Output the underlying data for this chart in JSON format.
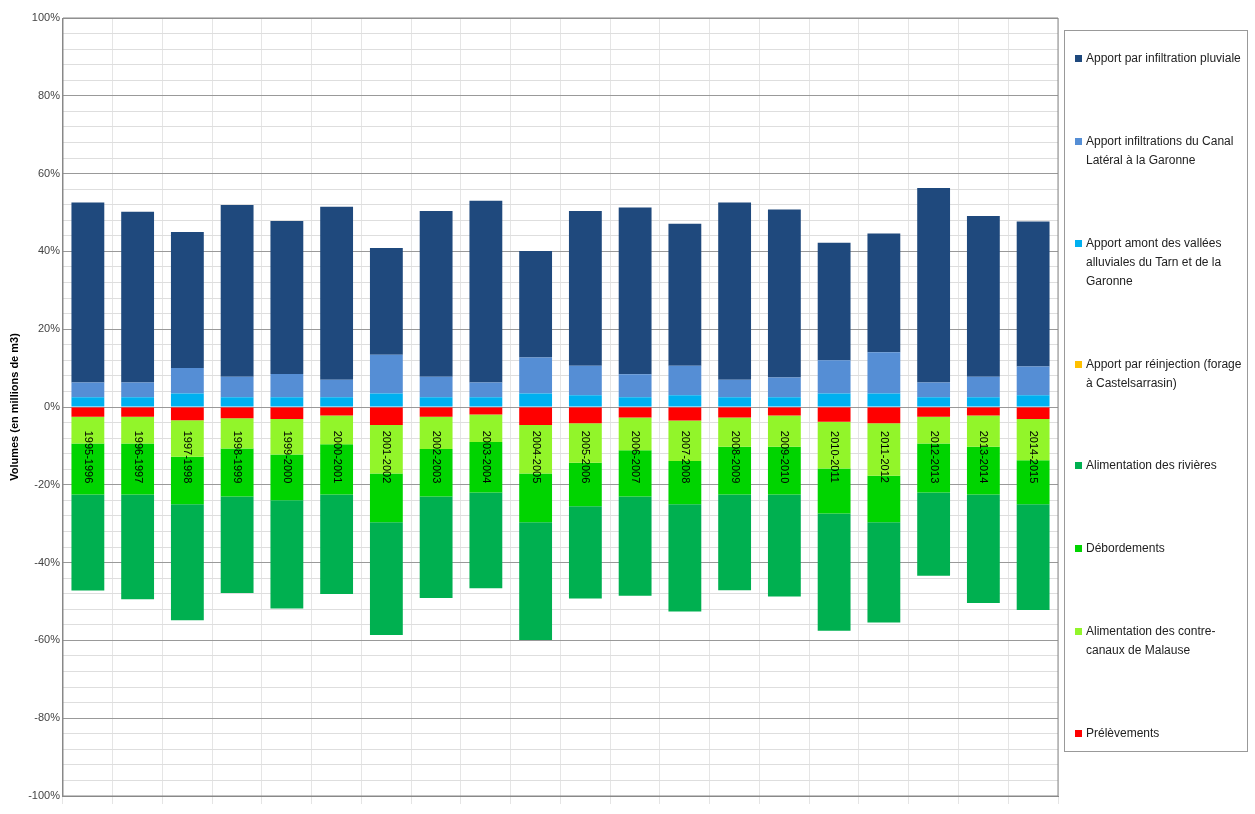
{
  "chart_data": {
    "type": "bar",
    "stacked": true,
    "ylabel": "Volumes (en millions de m3)",
    "categories": [
      "1995-1996",
      "1996-1997",
      "1997-1998",
      "1998-1999",
      "1999-2000",
      "2000-2001",
      "2001-2002",
      "2002-2003",
      "2003-2004",
      "2004-2005",
      "2005-2006",
      "2006-2007",
      "2007-2008",
      "2008-2009",
      "2009-2010",
      "2010-2011",
      "2011-2012",
      "2012-2013",
      "2013-2014",
      "2014-2015"
    ],
    "series": [
      {
        "name": "Prélèvements",
        "color": "#ff0000",
        "values": [
          -2.5,
          -2.5,
          -3.4,
          -2.9,
          -3.1,
          -2.2,
          -4.6,
          -2.5,
          -1.9,
          -4.6,
          -4.2,
          -2.7,
          -3.5,
          -2.7,
          -2.2,
          -3.8,
          -4.2,
          -2.5,
          -2.2,
          -3.1
        ]
      },
      {
        "name": "Alimentation des contre-canaux de Malause",
        "color": "#92f52a",
        "values": [
          -6.9,
          -6.9,
          -9.4,
          -7.8,
          -9.1,
          -7.4,
          -12.5,
          -8.3,
          -7.1,
          -12.5,
          -10.1,
          -8.4,
          -10.4,
          -7.5,
          -8.0,
          -12.0,
          -13.5,
          -6.9,
          -8.0,
          -10.6
        ]
      },
      {
        "name": "Débordements",
        "color": "#00d400",
        "values": [
          -13.1,
          -13.1,
          -12.2,
          -12.3,
          -11.8,
          -12.9,
          -12.5,
          -12.2,
          -13.0,
          -12.5,
          -11.2,
          -11.9,
          -11.1,
          -12.3,
          -12.3,
          -11.6,
          -11.9,
          -12.6,
          -12.3,
          -11.3
        ]
      },
      {
        "name": "Alimentation des rivières",
        "color": "#00b050",
        "values": [
          -24.7,
          -26.9,
          -29.8,
          -24.8,
          -27.8,
          -25.6,
          -29.0,
          -26.1,
          -24.6,
          -30.3,
          -23.7,
          -25.5,
          -27.6,
          -24.6,
          -26.2,
          -30.1,
          -25.8,
          -21.4,
          -27.9,
          -27.2
        ]
      },
      {
        "name": "Apport par réinjection (forage à Castelsarrasin)",
        "color": "#ffc000",
        "values": [
          0,
          0,
          0,
          0,
          0,
          0,
          0,
          0,
          0,
          0,
          0,
          0,
          0,
          0,
          0,
          0,
          0,
          0,
          0,
          0
        ]
      },
      {
        "name": "Apport amont des vallées alluviales du Tarn et de la Garonne",
        "color": "#00b0f0",
        "values": [
          2.5,
          2.5,
          3.5,
          2.5,
          2.5,
          2.5,
          3.5,
          2.5,
          2.5,
          3.5,
          3.0,
          2.5,
          3.0,
          2.5,
          2.5,
          3.5,
          3.5,
          2.5,
          2.5,
          3.0
        ]
      },
      {
        "name": "Apport infiltrations du Canal Latéral à la Garonne",
        "color": "#558ed5",
        "values": [
          3.8,
          3.8,
          6.5,
          5.3,
          6.0,
          4.5,
          9.9,
          5.3,
          3.8,
          9.2,
          7.6,
          5.9,
          7.6,
          4.5,
          5.1,
          8.5,
          10.6,
          3.8,
          5.3,
          7.4
        ]
      },
      {
        "name": "Apport par infiltration pluviale",
        "color": "#1f497d",
        "values": [
          46.3,
          43.9,
          35.0,
          44.1,
          39.3,
          44.5,
          27.5,
          42.6,
          46.7,
          27.4,
          39.8,
          42.9,
          36.5,
          45.6,
          43.2,
          30.2,
          30.5,
          50.0,
          41.3,
          37.3
        ]
      }
    ],
    "ylim": [
      -100,
      100
    ],
    "yticks": [
      {
        "value": -100,
        "label": "-100%"
      },
      {
        "value": -96,
        "label": null
      },
      {
        "value": -92,
        "label": null
      },
      {
        "value": -88,
        "label": null
      },
      {
        "value": -84,
        "label": null
      },
      {
        "value": -80,
        "label": "-80%"
      },
      {
        "value": -76,
        "label": null
      },
      {
        "value": -72,
        "label": null
      },
      {
        "value": -68,
        "label": null
      },
      {
        "value": -64,
        "label": null
      },
      {
        "value": -60,
        "label": "-60%"
      },
      {
        "value": -56,
        "label": null
      },
      {
        "value": -52,
        "label": null
      },
      {
        "value": -48,
        "label": null
      },
      {
        "value": -44,
        "label": null
      },
      {
        "value": -40,
        "label": "-40%"
      },
      {
        "value": -36,
        "label": null
      },
      {
        "value": -32,
        "label": null
      },
      {
        "value": -28,
        "label": null
      },
      {
        "value": -24,
        "label": null
      },
      {
        "value": -20,
        "label": "-20%"
      },
      {
        "value": -16,
        "label": null
      },
      {
        "value": -12,
        "label": null
      },
      {
        "value": -8,
        "label": null
      },
      {
        "value": -4,
        "label": null
      },
      {
        "value": 0,
        "label": "0%"
      },
      {
        "value": 4,
        "label": null
      },
      {
        "value": 8,
        "label": null
      },
      {
        "value": 12,
        "label": null
      },
      {
        "value": 16,
        "label": null
      },
      {
        "value": 20,
        "label": "20%"
      },
      {
        "value": 24,
        "label": null
      },
      {
        "value": 28,
        "label": null
      },
      {
        "value": 32,
        "label": null
      },
      {
        "value": 36,
        "label": null
      },
      {
        "value": 40,
        "label": "40%"
      },
      {
        "value": 44,
        "label": null
      },
      {
        "value": 48,
        "label": null
      },
      {
        "value": 52,
        "label": null
      },
      {
        "value": 56,
        "label": null
      },
      {
        "value": 60,
        "label": "60%"
      },
      {
        "value": 64,
        "label": null
      },
      {
        "value": 68,
        "label": null
      },
      {
        "value": 72,
        "label": null
      },
      {
        "value": 76,
        "label": null
      },
      {
        "value": 80,
        "label": "80%"
      },
      {
        "value": 84,
        "label": null
      },
      {
        "value": 88,
        "label": null
      },
      {
        "value": 92,
        "label": null
      },
      {
        "value": 96,
        "label": null
      },
      {
        "value": 100,
        "label": "100%"
      }
    ],
    "grid": true,
    "legend": "right"
  }
}
